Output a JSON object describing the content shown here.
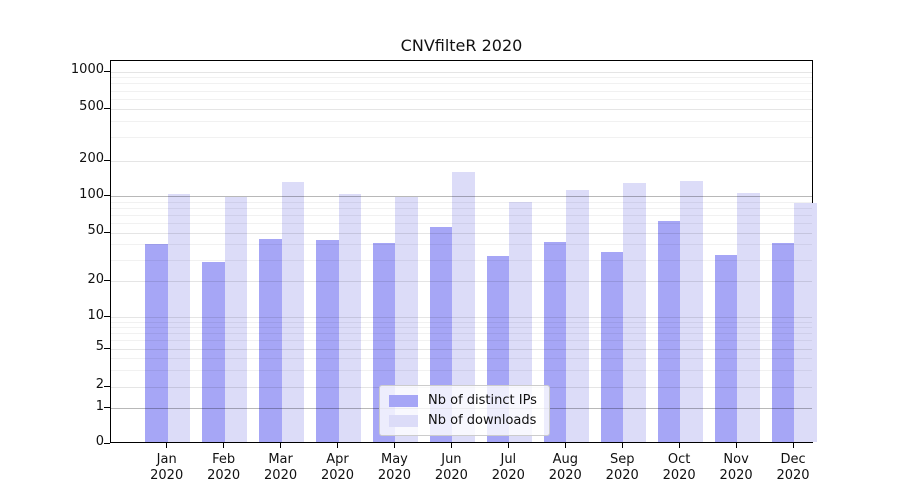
{
  "figure": {
    "title": "CNVfilteR 2020"
  },
  "chart_data": {
    "type": "bar",
    "title": "CNVfilteR 2020",
    "categories": [
      "Jan",
      "Feb",
      "Mar",
      "Apr",
      "May",
      "Jun",
      "Jul",
      "Aug",
      "Sep",
      "Oct",
      "Nov",
      "Dec"
    ],
    "x_tick_year_line": "2020",
    "series": [
      {
        "name": "Nb of distinct IPs",
        "color": "#a6a6f6",
        "values": [
          39,
          28,
          43,
          42,
          40,
          54,
          31,
          41,
          34,
          60,
          32,
          40
        ]
      },
      {
        "name": "Nb of downloads",
        "color": "#dcdcf8",
        "values": [
          101,
          95,
          128,
          101,
          96,
          156,
          86,
          110,
          126,
          130,
          104,
          85
        ]
      }
    ],
    "xlabel": "",
    "ylabel": "",
    "yscale": "symlog",
    "yticks": [
      0,
      1,
      2,
      5,
      10,
      20,
      50,
      100,
      200,
      500,
      1000
    ],
    "ylim": [
      0,
      1100
    ],
    "grid": true,
    "legend_position": "inside-bottom-center"
  }
}
